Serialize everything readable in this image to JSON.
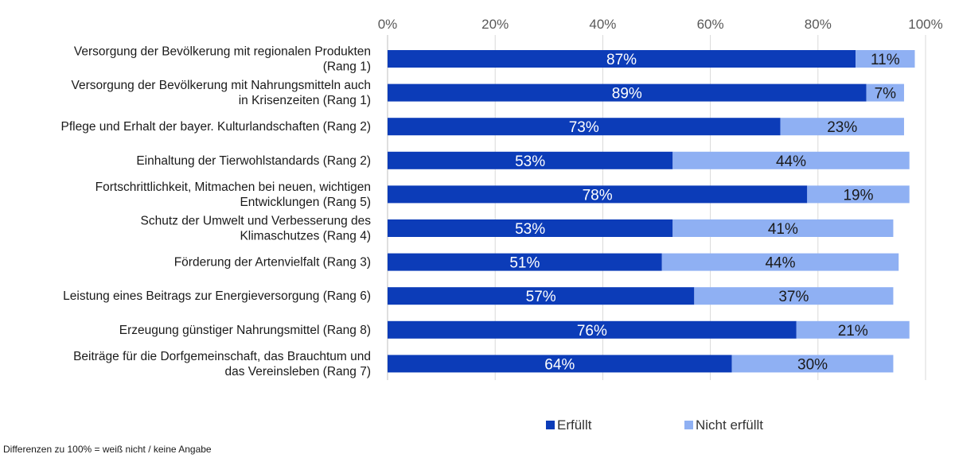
{
  "chart_data": {
    "type": "bar",
    "orientation": "horizontal",
    "stacked": true,
    "x_ticks": [
      "0%",
      "20%",
      "40%",
      "60%",
      "80%",
      "100%"
    ],
    "xlim": [
      0,
      100
    ],
    "grid": true,
    "legend_position": "bottom",
    "categories": [
      [
        "Versorgung der Bevölkerung mit regionalen Produkten",
        "(Rang 1)"
      ],
      [
        "Versorgung der Bevölkerung mit Nahrungsmitteln auch",
        "in Krisenzeiten (Rang 1)"
      ],
      [
        "Pflege und Erhalt der bayer. Kulturlandschaften (Rang 2)"
      ],
      [
        "Einhaltung der Tierwohlstandards (Rang 2)"
      ],
      [
        "Fortschrittlichkeit, Mitmachen bei neuen, wichtigen",
        "Entwicklungen (Rang 5)"
      ],
      [
        "Schutz der Umwelt und Verbesserung des",
        "Klimaschutzes (Rang 4)"
      ],
      [
        "Förderung der Artenvielfalt (Rang 3)"
      ],
      [
        "Leistung eines Beitrags zur Energieversorgung (Rang 6)"
      ],
      [
        "Erzeugung günstiger Nahrungsmittel (Rang 8)"
      ],
      [
        "Beiträge für die Dorfgemeinschaft, das Brauchtum und",
        "das Vereinsleben (Rang 7)"
      ]
    ],
    "series": [
      {
        "name": "Erfüllt",
        "color": "#0c3cb8",
        "label_color": "#ffffff",
        "values": [
          87,
          89,
          73,
          53,
          78,
          53,
          51,
          57,
          76,
          64
        ],
        "labels": [
          "87%",
          "89%",
          "73%",
          "53%",
          "78%",
          "53%",
          "51%",
          "57%",
          "76%",
          "64%"
        ]
      },
      {
        "name": "Nicht erfüllt",
        "color": "#8fb0f3",
        "label_color": "#1a1a1a",
        "values": [
          11,
          7,
          23,
          44,
          19,
          41,
          44,
          37,
          21,
          30
        ],
        "labels": [
          "11%",
          "7%",
          "23%",
          "44%",
          "19%",
          "41%",
          "44%",
          "37%",
          "21%",
          "30%"
        ]
      }
    ]
  },
  "footnote": "Differenzen zu 100% = weiß nicht / keine Angabe"
}
